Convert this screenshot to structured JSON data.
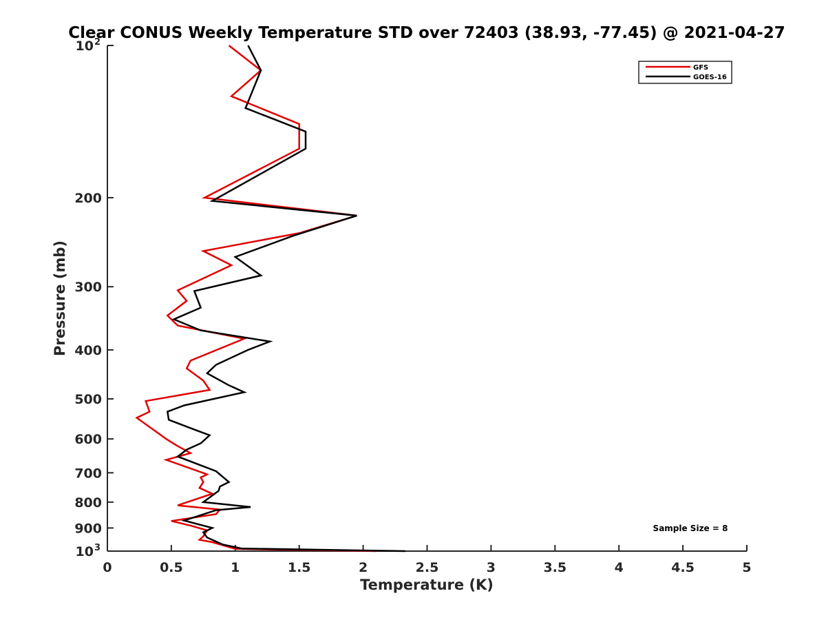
{
  "chart_data": {
    "type": "line",
    "title": "Clear CONUS Weekly Temperature STD over 72403 (38.93, -77.45) @ 2021-04-27",
    "xlabel": "Temperature (K)",
    "ylabel": "Pressure (mb)",
    "xlim": [
      0,
      5
    ],
    "ylim": [
      100,
      1000
    ],
    "y_scale": "log",
    "y_reversed": true,
    "grid": false,
    "legend_position": "top-right",
    "x_ticks": [
      {
        "value": 0,
        "label": "0"
      },
      {
        "value": 0.5,
        "label": "0.5"
      },
      {
        "value": 1,
        "label": "1"
      },
      {
        "value": 1.5,
        "label": "1.5"
      },
      {
        "value": 2,
        "label": "2"
      },
      {
        "value": 2.5,
        "label": "2.5"
      },
      {
        "value": 3,
        "label": "3"
      },
      {
        "value": 3.5,
        "label": "3.5"
      },
      {
        "value": 4,
        "label": "4"
      },
      {
        "value": 4.5,
        "label": "4.5"
      },
      {
        "value": 5,
        "label": "5"
      }
    ],
    "y_ticks": [
      {
        "value": 100,
        "label": "10",
        "exp": "2"
      },
      {
        "value": 200,
        "label": "200"
      },
      {
        "value": 300,
        "label": "300"
      },
      {
        "value": 400,
        "label": "400"
      },
      {
        "value": 500,
        "label": "500"
      },
      {
        "value": 600,
        "label": "600"
      },
      {
        "value": 700,
        "label": "700"
      },
      {
        "value": 800,
        "label": "800"
      },
      {
        "value": 900,
        "label": "900"
      },
      {
        "value": 1000,
        "label": "10",
        "exp": "3"
      }
    ],
    "annotation": "Sample Size = 8",
    "series": [
      {
        "name": "GFS",
        "color": "#e00000",
        "points": [
          [
            0.95,
            100
          ],
          [
            1.2,
            112
          ],
          [
            0.97,
            126
          ],
          [
            1.5,
            143
          ],
          [
            1.5,
            160
          ],
          [
            0.76,
            200
          ],
          [
            1.95,
            217
          ],
          [
            1.5,
            235
          ],
          [
            0.75,
            255
          ],
          [
            0.97,
            272
          ],
          [
            0.55,
            305
          ],
          [
            0.62,
            320
          ],
          [
            0.47,
            342
          ],
          [
            0.55,
            358
          ],
          [
            1.07,
            380
          ],
          [
            0.65,
            420
          ],
          [
            0.62,
            435
          ],
          [
            0.75,
            460
          ],
          [
            0.8,
            480
          ],
          [
            0.3,
            505
          ],
          [
            0.33,
            530
          ],
          [
            0.23,
            545
          ],
          [
            0.46,
            600
          ],
          [
            0.55,
            620
          ],
          [
            0.65,
            640
          ],
          [
            0.46,
            660
          ],
          [
            0.78,
            705
          ],
          [
            0.73,
            715
          ],
          [
            0.75,
            730
          ],
          [
            0.72,
            750
          ],
          [
            0.82,
            770
          ],
          [
            0.55,
            812
          ],
          [
            0.88,
            828
          ],
          [
            0.85,
            845
          ],
          [
            0.5,
            872
          ],
          [
            0.65,
            890
          ],
          [
            0.78,
            910
          ],
          [
            0.75,
            935
          ],
          [
            0.72,
            950
          ],
          [
            0.82,
            960
          ],
          [
            1.0,
            990
          ],
          [
            2.1,
            1000
          ]
        ]
      },
      {
        "name": "GOES-16",
        "color": "#000000",
        "points": [
          [
            1.1,
            100
          ],
          [
            1.2,
            112
          ],
          [
            1.08,
            133
          ],
          [
            1.55,
            148
          ],
          [
            1.55,
            160
          ],
          [
            0.82,
            203
          ],
          [
            1.95,
            217
          ],
          [
            1.45,
            238
          ],
          [
            1.0,
            262
          ],
          [
            1.2,
            285
          ],
          [
            0.68,
            306
          ],
          [
            0.73,
            330
          ],
          [
            0.52,
            348
          ],
          [
            0.73,
            366
          ],
          [
            1.27,
            385
          ],
          [
            1.1,
            400
          ],
          [
            0.85,
            428
          ],
          [
            0.78,
            445
          ],
          [
            0.95,
            470
          ],
          [
            1.07,
            485
          ],
          [
            0.6,
            515
          ],
          [
            0.47,
            530
          ],
          [
            0.48,
            550
          ],
          [
            0.68,
            575
          ],
          [
            0.8,
            590
          ],
          [
            0.73,
            612
          ],
          [
            0.62,
            630
          ],
          [
            0.55,
            650
          ],
          [
            0.85,
            695
          ],
          [
            0.95,
            730
          ],
          [
            0.88,
            745
          ],
          [
            0.87,
            760
          ],
          [
            0.75,
            800
          ],
          [
            1.12,
            818
          ],
          [
            0.85,
            830
          ],
          [
            0.6,
            870
          ],
          [
            0.82,
            900
          ],
          [
            0.75,
            918
          ],
          [
            0.78,
            940
          ],
          [
            0.9,
            970
          ],
          [
            1.05,
            988
          ],
          [
            2.33,
            1000
          ]
        ]
      }
    ]
  }
}
